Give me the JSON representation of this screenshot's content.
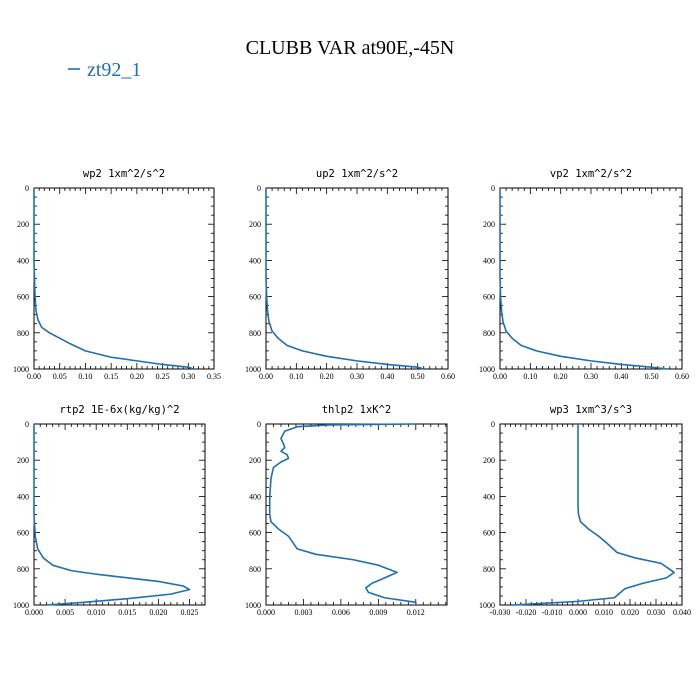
{
  "figure": {
    "title": "CLUBB VAR at90E,-45N",
    "legend": [
      {
        "label": "zt92_1",
        "color": "#1f6fb4"
      }
    ]
  },
  "chart_data": [
    {
      "type": "line",
      "title": "wp2  1xm^2/s^2",
      "series_color": "#1f6fb4",
      "xlim": [
        0,
        0.35
      ],
      "ylim": [
        1000,
        0
      ],
      "xticks": [
        0.0,
        0.05,
        0.1,
        0.15,
        0.2,
        0.25,
        0.3,
        0.35
      ],
      "xtick_labels": [
        "0.00",
        "0.05",
        "0.10",
        "0.15",
        "0.20",
        "0.25",
        "0.30",
        "0.35"
      ],
      "yticks": [
        0,
        200,
        400,
        600,
        800,
        1000
      ],
      "ytick_labels": [
        "0",
        "200",
        "400",
        "600",
        "800",
        "1000"
      ],
      "x": [
        0.0,
        0.0,
        0.001,
        0.002,
        0.004,
        0.008,
        0.015,
        0.03,
        0.05,
        0.07,
        0.1,
        0.15,
        0.2,
        0.25,
        0.3,
        0.31
      ],
      "y": [
        0,
        400,
        500,
        600,
        680,
        730,
        770,
        800,
        830,
        860,
        900,
        935,
        955,
        975,
        990,
        1000
      ]
    },
    {
      "type": "line",
      "title": "up2  1xm^2/s^2",
      "series_color": "#1f6fb4",
      "xlim": [
        0,
        0.6
      ],
      "ylim": [
        1000,
        0
      ],
      "xticks": [
        0.0,
        0.1,
        0.2,
        0.3,
        0.4,
        0.5,
        0.6
      ],
      "xtick_labels": [
        "0.00",
        "0.10",
        "0.20",
        "0.30",
        "0.40",
        "0.50",
        "0.60"
      ],
      "yticks": [
        0,
        200,
        400,
        600,
        800,
        1000
      ],
      "ytick_labels": [
        "0",
        "200",
        "400",
        "600",
        "800",
        "1000"
      ],
      "x": [
        0.0,
        0.0,
        0.002,
        0.005,
        0.01,
        0.02,
        0.04,
        0.07,
        0.12,
        0.2,
        0.3,
        0.4,
        0.5,
        0.52
      ],
      "y": [
        0,
        500,
        600,
        680,
        740,
        790,
        830,
        870,
        900,
        930,
        955,
        975,
        990,
        1000
      ]
    },
    {
      "type": "line",
      "title": "vp2  1xm^2/s^2",
      "series_color": "#1f6fb4",
      "xlim": [
        0,
        0.6
      ],
      "ylim": [
        1000,
        0
      ],
      "xticks": [
        0.0,
        0.1,
        0.2,
        0.3,
        0.4,
        0.5,
        0.6
      ],
      "xtick_labels": [
        "0.00",
        "0.10",
        "0.20",
        "0.30",
        "0.40",
        "0.50",
        "0.60"
      ],
      "yticks": [
        0,
        200,
        400,
        600,
        800,
        1000
      ],
      "ytick_labels": [
        "0",
        "200",
        "400",
        "600",
        "800",
        "1000"
      ],
      "x": [
        0.0,
        0.0,
        0.002,
        0.005,
        0.01,
        0.02,
        0.04,
        0.07,
        0.12,
        0.2,
        0.3,
        0.4,
        0.5,
        0.55
      ],
      "y": [
        0,
        500,
        600,
        680,
        740,
        790,
        830,
        870,
        900,
        930,
        955,
        975,
        990,
        1000
      ]
    },
    {
      "type": "line",
      "title": "rtp2  1E-6x(kg/kg)^2",
      "series_color": "#1f6fb4",
      "xlim": [
        0,
        0.0275
      ],
      "ylim": [
        1000,
        0
      ],
      "xticks": [
        0.0,
        0.005,
        0.01,
        0.015,
        0.02,
        0.025
      ],
      "xtick_labels": [
        "0.000",
        "0.005",
        "0.010",
        "0.015",
        "0.020",
        "0.025"
      ],
      "yticks": [
        0,
        200,
        400,
        600,
        800,
        1000
      ],
      "ytick_labels": [
        "0",
        "200",
        "400",
        "600",
        "800",
        "1000"
      ],
      "x": [
        0.0,
        0.0,
        0.0002,
        0.0006,
        0.0015,
        0.003,
        0.006,
        0.01,
        0.015,
        0.02,
        0.024,
        0.025,
        0.022,
        0.015,
        0.008,
        0.002
      ],
      "y": [
        0,
        500,
        620,
        690,
        740,
        780,
        810,
        830,
        850,
        870,
        895,
        915,
        940,
        965,
        985,
        1000
      ]
    },
    {
      "type": "line",
      "title": "thlp2  1xK^2",
      "series_color": "#1f6fb4",
      "xlim": [
        0,
        0.0145
      ],
      "ylim": [
        1000,
        0
      ],
      "xticks": [
        0.0,
        0.003,
        0.006,
        0.009,
        0.012
      ],
      "xtick_labels": [
        "0.000",
        "0.003",
        "0.006",
        "0.009",
        "0.012"
      ],
      "yticks": [
        0,
        200,
        400,
        600,
        800,
        1000
      ],
      "ytick_labels": [
        "0",
        "200",
        "400",
        "600",
        "800",
        "1000"
      ],
      "x": [
        0.012,
        0.005,
        0.0025,
        0.0015,
        0.0012,
        0.0014,
        0.0015,
        0.0012,
        0.0017,
        0.0018,
        0.0012,
        0.0006,
        0.0004,
        0.0003,
        0.0003,
        0.0004,
        0.001,
        0.0018,
        0.0022,
        0.0025,
        0.004,
        0.007,
        0.009,
        0.0105,
        0.0095,
        0.0085,
        0.008,
        0.0082,
        0.0095,
        0.012,
        0.012
      ],
      "y": [
        0,
        5,
        15,
        40,
        80,
        110,
        130,
        150,
        170,
        190,
        210,
        240,
        300,
        400,
        500,
        540,
        580,
        620,
        660,
        690,
        720,
        750,
        780,
        820,
        850,
        880,
        905,
        930,
        960,
        985,
        1000
      ]
    },
    {
      "type": "line",
      "title": "wp3  1xm^3/s^3",
      "series_color": "#1f6fb4",
      "xlim": [
        -0.03,
        0.04
      ],
      "ylim": [
        1000,
        0
      ],
      "xticks": [
        -0.03,
        -0.02,
        -0.01,
        0.0,
        0.01,
        0.02,
        0.03,
        0.04
      ],
      "xtick_labels": [
        "-0.030",
        "-0.020",
        "-0.010",
        "0.000",
        "0.010",
        "0.020",
        "0.030",
        "0.040"
      ],
      "yticks": [
        0,
        200,
        400,
        600,
        800,
        1000
      ],
      "ytick_labels": [
        "0",
        "200",
        "400",
        "600",
        "800",
        "1000"
      ],
      "x": [
        0.0,
        0.0,
        0.0002,
        0.001,
        0.004,
        0.008,
        0.012,
        0.015,
        0.022,
        0.032,
        0.037,
        0.034,
        0.025,
        0.018,
        0.014,
        0.0,
        -0.015,
        -0.025
      ],
      "y": [
        0,
        450,
        500,
        540,
        580,
        620,
        670,
        710,
        740,
        770,
        820,
        850,
        880,
        910,
        960,
        980,
        992,
        1000
      ]
    }
  ]
}
